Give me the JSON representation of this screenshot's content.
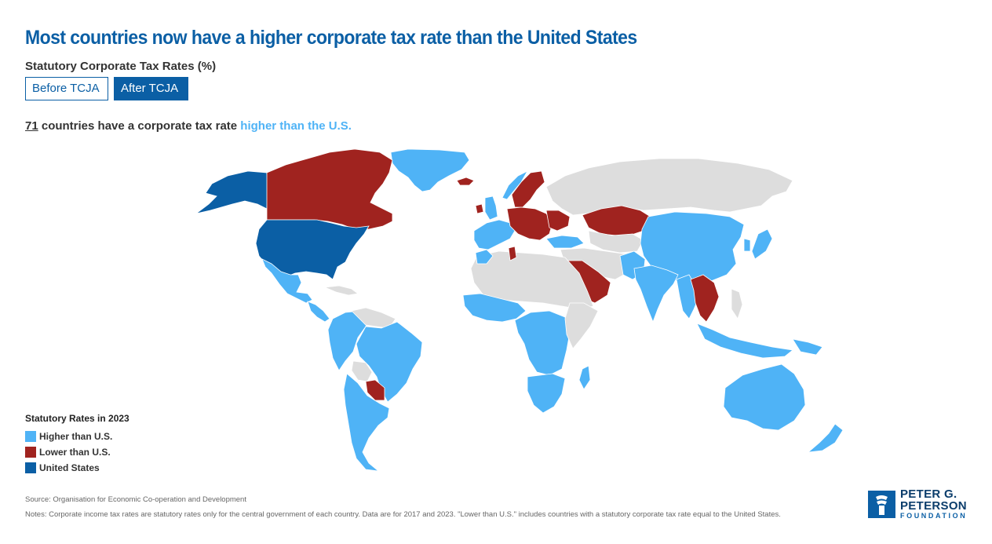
{
  "header": {
    "title": "Most countries now have a higher corporate tax rate than the United States",
    "subtitle": "Statutory Corporate Tax Rates (%)"
  },
  "toggles": [
    {
      "label": "Before TCJA",
      "selected": false
    },
    {
      "label": "After TCJA",
      "selected": true
    }
  ],
  "headline": {
    "count": "71",
    "text": " countries have a corporate tax rate ",
    "highlight": "higher than the U.S."
  },
  "colors": {
    "higher": "#4fb3f6",
    "lower": "#a0231f",
    "us": "#0b5fa5",
    "nodata": "#dddddd",
    "title": "#0b5fa5"
  },
  "legend": {
    "title": "Statutory Rates in 2023",
    "items": [
      {
        "label": "Higher than U.S.",
        "color": "#4fb3f6"
      },
      {
        "label": "Lower than U.S.",
        "color": "#a0231f"
      },
      {
        "label": "United States",
        "color": "#0b5fa5"
      }
    ]
  },
  "footer": {
    "source": "Source: Organisation for Economic Co-operation and Development",
    "notes": "Notes: Corporate income tax rates are statutory rates only for the central government of each country. Data are for 2017 and 2023. \"Lower than U.S.\" includes countries with a statutory corporate tax rate equal to the United States."
  },
  "logo": {
    "line1": "PETER G.",
    "line2": "PETERSON",
    "line3": "FOUNDATION"
  },
  "regions": [
    {
      "name": "greenland",
      "status": "higher"
    },
    {
      "name": "alaska",
      "status": "us"
    },
    {
      "name": "canada",
      "status": "lower"
    },
    {
      "name": "usa",
      "status": "us"
    },
    {
      "name": "mexico",
      "status": "higher"
    },
    {
      "name": "central-america",
      "status": "higher"
    },
    {
      "name": "cuba",
      "status": "nodata"
    },
    {
      "name": "south-america-north",
      "status": "higher"
    },
    {
      "name": "venezuela-guianas",
      "status": "nodata"
    },
    {
      "name": "brazil",
      "status": "higher"
    },
    {
      "name": "bolivia",
      "status": "nodata"
    },
    {
      "name": "paraguay",
      "status": "lower"
    },
    {
      "name": "argentina-chile",
      "status": "higher"
    },
    {
      "name": "iceland",
      "status": "lower"
    },
    {
      "name": "ireland",
      "status": "lower"
    },
    {
      "name": "uk",
      "status": "higher"
    },
    {
      "name": "scandinavia",
      "status": "lower"
    },
    {
      "name": "norway",
      "status": "higher"
    },
    {
      "name": "western-europe",
      "status": "higher"
    },
    {
      "name": "central-europe",
      "status": "lower"
    },
    {
      "name": "eastern-europe",
      "status": "lower"
    },
    {
      "name": "turkey",
      "status": "higher"
    },
    {
      "name": "russia",
      "status": "nodata"
    },
    {
      "name": "kazakhstan",
      "status": "lower"
    },
    {
      "name": "central-asia",
      "status": "nodata"
    },
    {
      "name": "mongolia-china",
      "status": "higher"
    },
    {
      "name": "japan",
      "status": "higher"
    },
    {
      "name": "korea",
      "status": "higher"
    },
    {
      "name": "middle-east",
      "status": "nodata"
    },
    {
      "name": "saudi-arabia",
      "status": "lower"
    },
    {
      "name": "pakistan",
      "status": "higher"
    },
    {
      "name": "india",
      "status": "higher"
    },
    {
      "name": "southeast-asia",
      "status": "higher"
    },
    {
      "name": "thailand-vietnam",
      "status": "lower"
    },
    {
      "name": "indonesia",
      "status": "higher"
    },
    {
      "name": "papua-new-guinea",
      "status": "higher"
    },
    {
      "name": "philippines",
      "status": "nodata"
    },
    {
      "name": "north-africa",
      "status": "nodata"
    },
    {
      "name": "morocco",
      "status": "higher"
    },
    {
      "name": "tunisia",
      "status": "lower"
    },
    {
      "name": "west-africa",
      "status": "higher"
    },
    {
      "name": "central-africa",
      "status": "higher"
    },
    {
      "name": "east-africa",
      "status": "nodata"
    },
    {
      "name": "southern-africa",
      "status": "higher"
    },
    {
      "name": "madagascar",
      "status": "higher"
    },
    {
      "name": "australia",
      "status": "higher"
    },
    {
      "name": "new-zealand",
      "status": "higher"
    }
  ]
}
